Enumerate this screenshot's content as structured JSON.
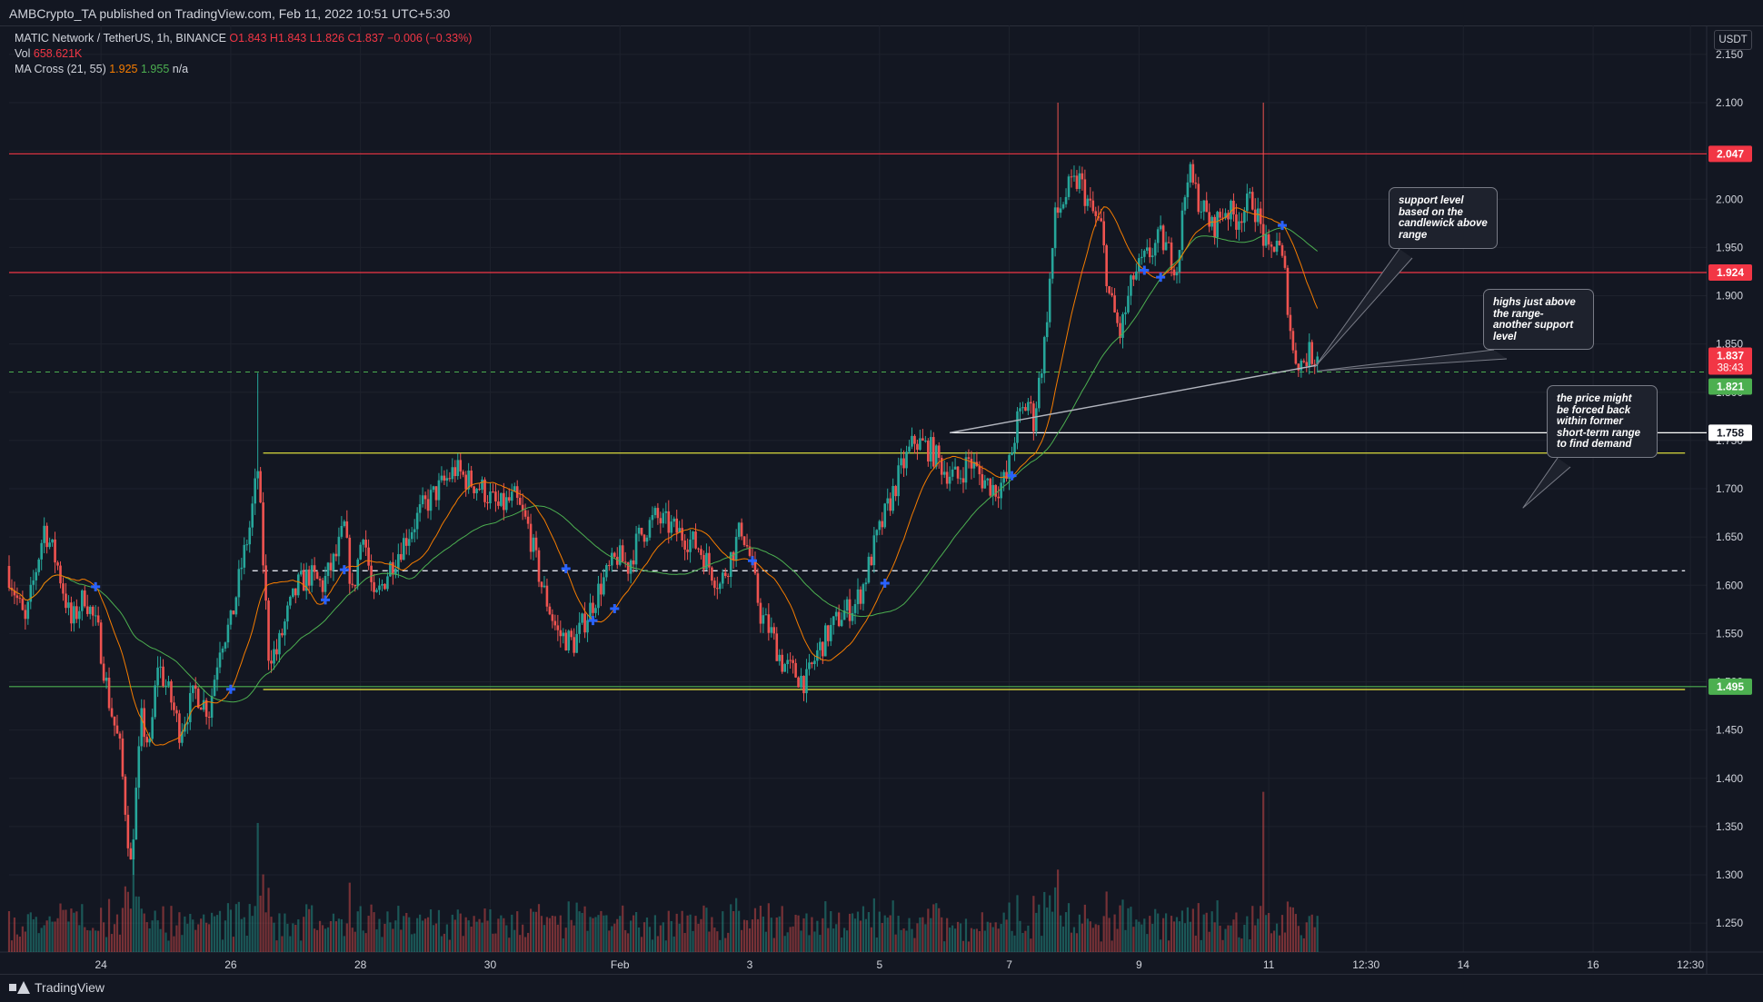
{
  "header": {
    "published_by": "AMBCrypto_TA published on TradingView.com, Feb 11, 2022 10:51 UTC+5:30"
  },
  "legend": {
    "symbol": "MATIC Network / TetherUS, 1h, BINANCE",
    "o": "O1.843",
    "h": "H1.843",
    "l": "L1.826",
    "c": "C1.837",
    "chg": "−0.006 (−0.33%)",
    "vol_label": "Vol",
    "vol_value": "658.621K",
    "ma_label": "MA Cross (21, 55)",
    "ma_fast": "1.925",
    "ma_slow": "1.955",
    "ma_na": "n/a"
  },
  "axis": {
    "currency": "USDT"
  },
  "footer": {
    "brand": "TradingView"
  },
  "colors": {
    "background": "#131722",
    "up": "#26a69a",
    "down": "#ef5350",
    "ma_fast": "#f57c00",
    "ma_slow": "#4caf50",
    "cross_marker": "#2962ff",
    "resistance": "#f23645",
    "range_line": "#c9c93a",
    "support_badge": "#4caf50"
  },
  "chart_data": {
    "type": "candlestick",
    "symbol": "MATIC/USDT",
    "exchange": "BINANCE",
    "timeframe": "1h",
    "ylim": [
      1.22,
      2.18
    ],
    "y_ticks": [
      "2.150",
      "2.100",
      "2.050",
      "2.000",
      "1.950",
      "1.900",
      "1.850",
      "1.800",
      "1.750",
      "1.700",
      "1.650",
      "1.600",
      "1.550",
      "1.500",
      "1.450",
      "1.400",
      "1.350",
      "1.300",
      "1.250"
    ],
    "x_ticks": [
      {
        "label": "24",
        "t": 72
      },
      {
        "label": "26",
        "t": 120
      },
      {
        "label": "28",
        "t": 168
      },
      {
        "label": "30",
        "t": 216
      },
      {
        "label": "Feb",
        "t": 264
      },
      {
        "label": "3",
        "t": 312
      },
      {
        "label": "5",
        "t": 360
      },
      {
        "label": "7",
        "t": 408
      },
      {
        "label": "9",
        "t": 456
      },
      {
        "label": "11",
        "t": 504
      },
      {
        "label": "12:30",
        "t": 540
      },
      {
        "label": "14",
        "t": 576
      },
      {
        "label": "16",
        "t": 624
      },
      {
        "label": "12:30",
        "t": 660
      }
    ],
    "x_range_hours": [
      38,
      666
    ],
    "last_candle_hour": 522,
    "price_waypoints": [
      [
        38,
        1.62
      ],
      [
        45,
        1.56
      ],
      [
        52,
        1.66
      ],
      [
        57,
        1.62
      ],
      [
        62,
        1.56
      ],
      [
        67,
        1.59
      ],
      [
        72,
        1.55
      ],
      [
        76,
        1.48
      ],
      [
        80,
        1.43
      ],
      [
        84,
        1.31
      ],
      [
        88,
        1.46
      ],
      [
        91,
        1.43
      ],
      [
        94,
        1.52
      ],
      [
        99,
        1.48
      ],
      [
        102,
        1.45
      ],
      [
        108,
        1.49
      ],
      [
        113,
        1.47
      ],
      [
        117,
        1.54
      ],
      [
        121,
        1.56
      ],
      [
        125,
        1.62
      ],
      [
        128,
        1.66
      ],
      [
        131,
        1.72
      ],
      [
        135,
        1.53
      ],
      [
        138,
        1.53
      ],
      [
        142,
        1.57
      ],
      [
        146,
        1.6
      ],
      [
        150,
        1.61
      ],
      [
        155,
        1.6
      ],
      [
        160,
        1.63
      ],
      [
        163,
        1.66
      ],
      [
        166,
        1.59
      ],
      [
        170,
        1.66
      ],
      [
        174,
        1.58
      ],
      [
        180,
        1.62
      ],
      [
        186,
        1.65
      ],
      [
        192,
        1.68
      ],
      [
        198,
        1.7
      ],
      [
        204,
        1.72
      ],
      [
        208,
        1.71
      ],
      [
        214,
        1.7
      ],
      [
        220,
        1.68
      ],
      [
        226,
        1.69
      ],
      [
        231,
        1.66
      ],
      [
        236,
        1.6
      ],
      [
        242,
        1.55
      ],
      [
        248,
        1.54
      ],
      [
        253,
        1.57
      ],
      [
        258,
        1.6
      ],
      [
        264,
        1.63
      ],
      [
        268,
        1.62
      ],
      [
        272,
        1.65
      ],
      [
        278,
        1.67
      ],
      [
        284,
        1.66
      ],
      [
        289,
        1.65
      ],
      [
        294,
        1.64
      ],
      [
        298,
        1.62
      ],
      [
        302,
        1.6
      ],
      [
        306,
        1.63
      ],
      [
        310,
        1.66
      ],
      [
        313,
        1.63
      ],
      [
        317,
        1.57
      ],
      [
        321,
        1.55
      ],
      [
        325,
        1.52
      ],
      [
        329,
        1.51
      ],
      [
        334,
        1.5
      ],
      [
        338,
        1.53
      ],
      [
        342,
        1.55
      ],
      [
        347,
        1.57
      ],
      [
        352,
        1.58
      ],
      [
        355,
        1.6
      ],
      [
        359,
        1.64
      ],
      [
        364,
        1.68
      ],
      [
        369,
        1.72
      ],
      [
        374,
        1.75
      ],
      [
        380,
        1.74
      ],
      [
        385,
        1.72
      ],
      [
        390,
        1.71
      ],
      [
        394,
        1.73
      ],
      [
        399,
        1.71
      ],
      [
        404,
        1.7
      ],
      [
        408,
        1.71
      ],
      [
        412,
        1.77
      ],
      [
        416,
        1.79
      ],
      [
        418,
        1.77
      ],
      [
        422,
        1.85
      ],
      [
        426,
        1.98
      ],
      [
        431,
        2.01
      ],
      [
        435,
        2.02
      ],
      [
        439,
        1.99
      ],
      [
        443,
        1.97
      ],
      [
        446,
        1.9
      ],
      [
        450,
        1.86
      ],
      [
        455,
        1.92
      ],
      [
        460,
        1.94
      ],
      [
        465,
        1.96
      ],
      [
        471,
        1.93
      ],
      [
        475,
        2.03
      ],
      [
        479,
        2.0
      ],
      [
        484,
        1.97
      ],
      [
        489,
        1.99
      ],
      [
        493,
        1.98
      ],
      [
        496,
        1.99
      ],
      [
        499,
        2.0
      ],
      [
        502,
        1.97
      ],
      [
        505,
        1.94
      ],
      [
        508,
        1.96
      ],
      [
        511,
        1.92
      ],
      [
        514,
        1.84
      ],
      [
        517,
        1.83
      ],
      [
        520,
        1.84
      ],
      [
        522,
        1.837
      ]
    ],
    "spikes": [
      {
        "t": 130,
        "high": 1.82
      },
      {
        "t": 426,
        "high": 2.1
      },
      {
        "t": 502,
        "high": 2.1
      },
      {
        "t": 84,
        "low": 1.3
      }
    ],
    "ma_fast_period": 21,
    "ma_slow_period": 55,
    "cross_marker_hours": [
      70,
      120,
      155,
      162,
      244,
      254,
      262,
      313,
      362,
      409,
      458,
      464,
      509
    ],
    "horizontal_levels": [
      {
        "price": 2.047,
        "style": "solid",
        "color": "#f23645",
        "badge": "2.047",
        "badge_color": "#f23645"
      },
      {
        "price": 1.924,
        "style": "solid",
        "color": "#f23645",
        "badge": "1.924",
        "badge_color": "#f23645"
      },
      {
        "price": 1.821,
        "style": "dashed",
        "color": "#4caf50",
        "badge": "1.821",
        "badge_color": "#4caf50"
      },
      {
        "price": 1.758,
        "style": "solid",
        "color": "#ffffff",
        "badge": "1.758",
        "badge_color": "#ffffff",
        "badge_text_color": "#131722",
        "t_start": 386
      },
      {
        "price": 1.495,
        "style": "solid",
        "color": "#4caf50",
        "badge": "1.495",
        "badge_color": "#4caf50"
      }
    ],
    "range_box": {
      "top": 1.737,
      "bottom": 1.492,
      "t_start": 132,
      "t_end": 658,
      "color": "#c9c93a"
    },
    "midline": {
      "price": 1.615,
      "t_start": 128,
      "t_end": 658,
      "style": "dashed"
    },
    "trendline": {
      "from": [
        386,
        1.758
      ],
      "to": [
        522,
        1.828
      ]
    },
    "last_price_badge": {
      "price": "1.837",
      "countdown": "38:43",
      "color": "#f23645"
    },
    "notes": [
      {
        "text": "support level\nbased on the\ncandlewick above\nrange",
        "pointer_to": [
          521,
          1.826
        ]
      },
      {
        "text": "highs just above\nthe range-\nanother support\nlevel",
        "pointer_to": [
          522,
          1.822
        ]
      },
      {
        "text": "the price might\nbe forced back\nwithin former\nshort-term range\nto find demand",
        "pointer_to": [
          598,
          1.68
        ]
      }
    ]
  }
}
